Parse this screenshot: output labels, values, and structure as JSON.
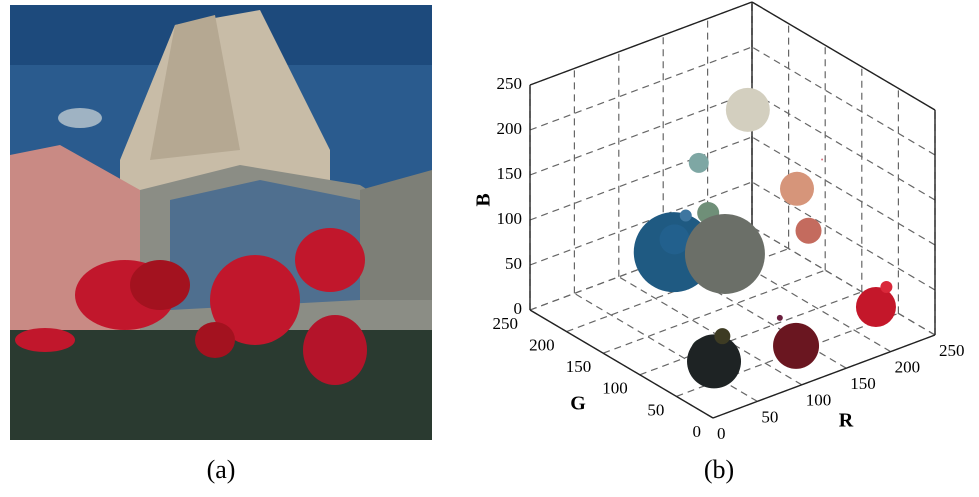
{
  "caption_a": "(a)",
  "chart_data": {
    "type": "scatter3d",
    "caption": "(b)",
    "x_label": "R",
    "y_label": "G",
    "z_label": "B",
    "xlim": [
      0,
      250
    ],
    "ylim": [
      0,
      250
    ],
    "zlim": [
      0,
      250
    ],
    "xticks": [
      0,
      50,
      100,
      150,
      200,
      250
    ],
    "yticks": [
      0,
      50,
      100,
      150,
      200,
      250
    ],
    "zticks": [
      0,
      50,
      100,
      150,
      200,
      250
    ],
    "grid": true,
    "r": [
      200,
      100,
      30,
      35,
      30,
      110,
      200,
      220,
      210,
      190,
      120,
      110,
      60,
      60,
      30,
      100,
      230
    ],
    "g": [
      195,
      105,
      90,
      95,
      35,
      20,
      20,
      30,
      140,
      100,
      165,
      140,
      110,
      60,
      50,
      30,
      130
    ],
    "b": [
      175,
      95,
      130,
      140,
      35,
      30,
      40,
      50,
      110,
      90,
      160,
      120,
      150,
      40,
      40,
      60,
      140
    ],
    "size": [
      22,
      40,
      40,
      15,
      27,
      23,
      20,
      6,
      17,
      13,
      10,
      11,
      6,
      8,
      12,
      3,
      1
    ],
    "colors": [
      "#d3cfbf",
      "#6b6f68",
      "#1f5a82",
      "#22608d",
      "#1e2324",
      "#6a1620",
      "#c4172a",
      "#d9283a",
      "#d6957a",
      "#c46b5e",
      "#7ea7a4",
      "#6f8f78",
      "#3e76a0",
      "#3d3b23",
      "#253a2f",
      "#6b1f3e",
      "#e07080"
    ]
  }
}
